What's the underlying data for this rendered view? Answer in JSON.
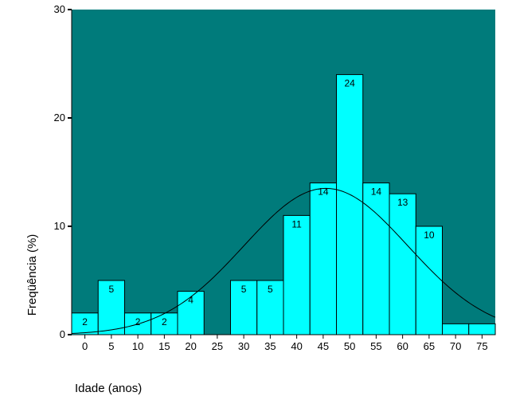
{
  "chart_data": {
    "type": "bar",
    "xlabel": "Idade (anos)",
    "ylabel": "Freqüência (%)",
    "ylim": [
      0,
      30
    ],
    "y_ticks": [
      "0",
      "10",
      "20",
      "30"
    ],
    "categories": [
      "0",
      "5",
      "10",
      "15",
      "20",
      "25",
      "30",
      "35",
      "40",
      "45",
      "50",
      "55",
      "60",
      "65",
      "70",
      "75"
    ],
    "values": [
      2,
      5,
      2,
      2,
      4,
      0,
      5,
      5,
      11,
      14,
      24,
      14,
      13,
      10,
      1,
      1
    ],
    "data_labels": [
      "2",
      "5",
      "2",
      "2",
      "4",
      "",
      "5",
      "5",
      "11",
      "14",
      "24",
      "14",
      "13",
      "10",
      "",
      ""
    ],
    "normal_curve": {
      "mean": 45.5,
      "sd": 15.5,
      "peak": 13.5
    },
    "grid": false,
    "colors": {
      "plot_background": "#007B7B",
      "bar_fill": "#00FFFF",
      "bar_stroke": "#000000",
      "curve": "#000000"
    }
  }
}
